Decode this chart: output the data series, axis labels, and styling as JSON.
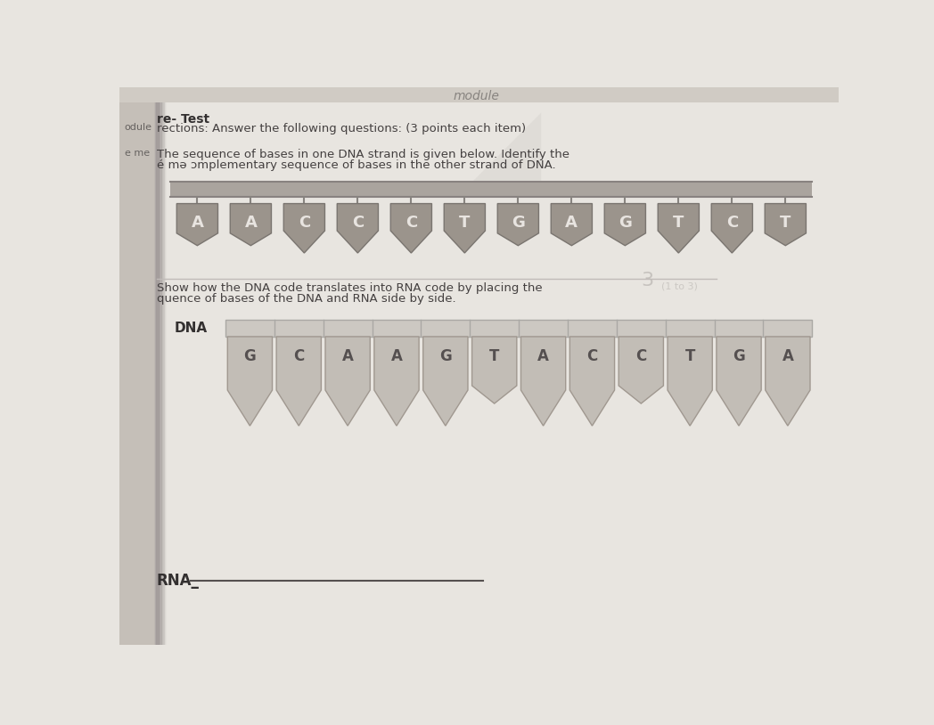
{
  "page_color": "#e8e5e0",
  "left_strip_color": "#c5bfb8",
  "top_strip_color": "#d0cbc4",
  "title_line1": "re- Test",
  "title_line2": "rections: Answer the following questions: (3 points each item)",
  "instruction1": "The sequence of bases in one DNA strand is given below. Identify the",
  "instruction1b": "é mə ɔmplementary sequence of bases in the other strand of DNA.",
  "instruction2": "Show how the DNA code translates into RNA code by placing the",
  "instruction2b": "quence of bases of the DNA and RNA side by side.",
  "rna_label": "RNA_",
  "dna_label": "DNA",
  "strand1_bases": [
    "A",
    "A",
    "C",
    "C",
    "C",
    "T",
    "G",
    "A",
    "G",
    "T",
    "C",
    "T"
  ],
  "strand2_bases": [
    "G",
    "C",
    "A",
    "A",
    "G",
    "T",
    "A",
    "C",
    "C",
    "T",
    "G",
    "A"
  ],
  "strand1_tag_color": "#9b948c",
  "strand1_tag_edge": "#7a7570",
  "strand1_bar_color": "#aaa49e",
  "strand1_bar_edge": "#888280",
  "strand1_text_color": "#e8e4e0",
  "strand2_tag_color": "#c2bdb6",
  "strand2_tag_edge": "#a09890",
  "strand2_bar_color": "#ccc8c2",
  "strand2_bar_edge": "#aaa8a4",
  "strand2_text_color": "#555050",
  "label_color": "#333030",
  "body_text_color": "#444040",
  "stem_color": "#888480"
}
